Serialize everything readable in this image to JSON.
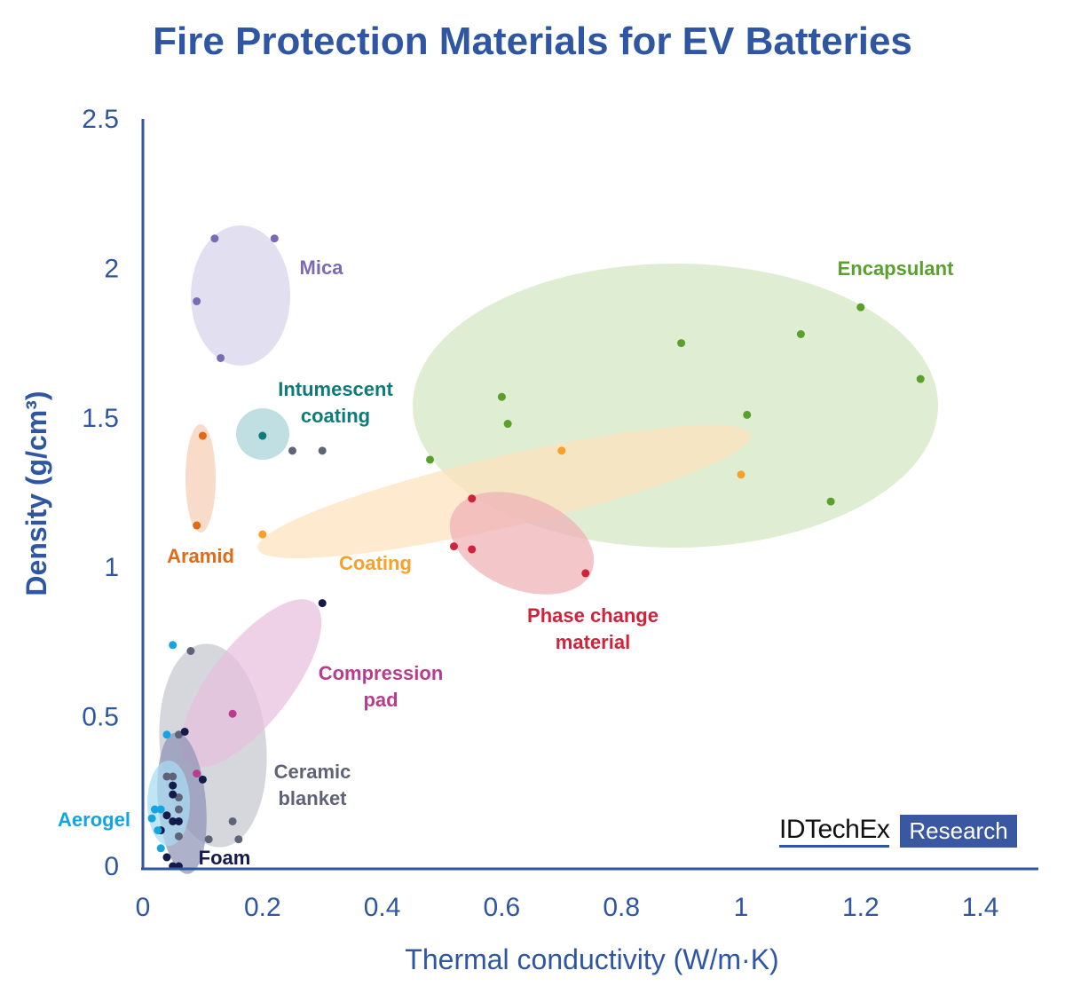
{
  "chart_data": {
    "type": "scatter",
    "title": "Fire Protection Materials for EV Batteries",
    "xlabel": "Thermal conductivity (W/m·K)",
    "ylabel": "Density (g/cm³)",
    "xlim": [
      0,
      1.5
    ],
    "ylim": [
      0,
      2.5
    ],
    "xticks": [
      "0",
      "0.2",
      "0.4",
      "0.6",
      "0.8",
      "1",
      "1.2",
      "1.4"
    ],
    "yticks": [
      "0",
      "0.5",
      "1",
      "1.5",
      "2",
      "2.5"
    ],
    "grid": false,
    "series": [
      {
        "name": "Mica",
        "label_lines": [
          "Mica"
        ],
        "color": "#7b6bb5",
        "fill": "#d5d3ea",
        "points": [
          [
            0.12,
            2.1
          ],
          [
            0.22,
            2.1
          ],
          [
            0.09,
            1.89
          ],
          [
            0.13,
            1.7
          ]
        ]
      },
      {
        "name": "Intumescent coating",
        "label_lines": [
          "Intumescent",
          "coating"
        ],
        "color": "#0f7a7a",
        "fill": "#a8d3d8",
        "points": [
          [
            0.2,
            1.44
          ]
        ]
      },
      {
        "name": "Aramid",
        "label_lines": [
          "Aramid"
        ],
        "color": "#e06a17",
        "fill": "#f5cfb4",
        "points": [
          [
            0.1,
            1.44
          ],
          [
            0.09,
            1.14
          ]
        ]
      },
      {
        "name": "Encapsulant",
        "label_lines": [
          "Encapsulant"
        ],
        "color": "#5aa02c",
        "fill": "#d3e6c1",
        "points": [
          [
            0.48,
            1.36
          ],
          [
            0.6,
            1.57
          ],
          [
            0.61,
            1.48
          ],
          [
            0.9,
            1.75
          ],
          [
            1.1,
            1.78
          ],
          [
            1.2,
            1.87
          ],
          [
            1.3,
            1.63
          ],
          [
            1.01,
            1.51
          ],
          [
            1.15,
            1.22
          ]
        ]
      },
      {
        "name": "Coating",
        "label_lines": [
          "Coating"
        ],
        "color": "#f7a02a",
        "fill": "#fde2bc",
        "points": [
          [
            0.2,
            1.11
          ],
          [
            0.7,
            1.39
          ],
          [
            1.0,
            1.31
          ]
        ]
      },
      {
        "name": "Phase change material",
        "label_lines": [
          "Phase change",
          "material"
        ],
        "color": "#d0223a",
        "fill": "#eeb0b6",
        "points": [
          [
            0.55,
            1.23
          ],
          [
            0.52,
            1.07
          ],
          [
            0.55,
            1.06
          ],
          [
            0.74,
            0.98
          ]
        ]
      },
      {
        "name": "Compression pad",
        "label_lines": [
          "Compression",
          "pad"
        ],
        "color": "#b83d8e",
        "fill": "#e7bfdc",
        "points": [
          [
            0.15,
            0.51
          ],
          [
            0.09,
            0.31
          ]
        ]
      },
      {
        "name": "Ceramic blanket",
        "label_lines": [
          "Ceramic",
          "blanket"
        ],
        "color": "#5f6377",
        "fill": "#c5c7d0",
        "points": [
          [
            0.08,
            0.72
          ],
          [
            0.06,
            0.44
          ],
          [
            0.15,
            0.15
          ],
          [
            0.16,
            0.09
          ],
          [
            0.11,
            0.09
          ],
          [
            0.06,
            0.1
          ],
          [
            0.25,
            1.39
          ],
          [
            0.3,
            1.39
          ],
          [
            0.05,
            0.3
          ],
          [
            0.06,
            0.23
          ],
          [
            0.06,
            0.19
          ],
          [
            0.04,
            0.3
          ]
        ]
      },
      {
        "name": "Foam",
        "label_lines": [
          "Foam"
        ],
        "color": "#141a4a",
        "fill": "#8f93b5",
        "points": [
          [
            0.07,
            0.45
          ],
          [
            0.1,
            0.29
          ],
          [
            0.05,
            0.24
          ],
          [
            0.04,
            0.17
          ],
          [
            0.03,
            0.12
          ],
          [
            0.05,
            0.15
          ],
          [
            0.06,
            0.15
          ],
          [
            0.04,
            0.03
          ],
          [
            0.05,
            0.0
          ],
          [
            0.06,
            0.0
          ],
          [
            0.3,
            0.88
          ],
          [
            0.05,
            0.27
          ]
        ]
      },
      {
        "name": "Aerogel",
        "label_lines": [
          "Aerogel"
        ],
        "color": "#12a5e0",
        "fill": "#a8dcf2",
        "points": [
          [
            0.05,
            0.74
          ],
          [
            0.04,
            0.44
          ],
          [
            0.02,
            0.19
          ],
          [
            0.03,
            0.19
          ],
          [
            0.015,
            0.16
          ],
          [
            0.025,
            0.12
          ],
          [
            0.03,
            0.06
          ]
        ]
      }
    ]
  },
  "logo": {
    "brand": "IDTechEx",
    "tag": "Research"
  }
}
